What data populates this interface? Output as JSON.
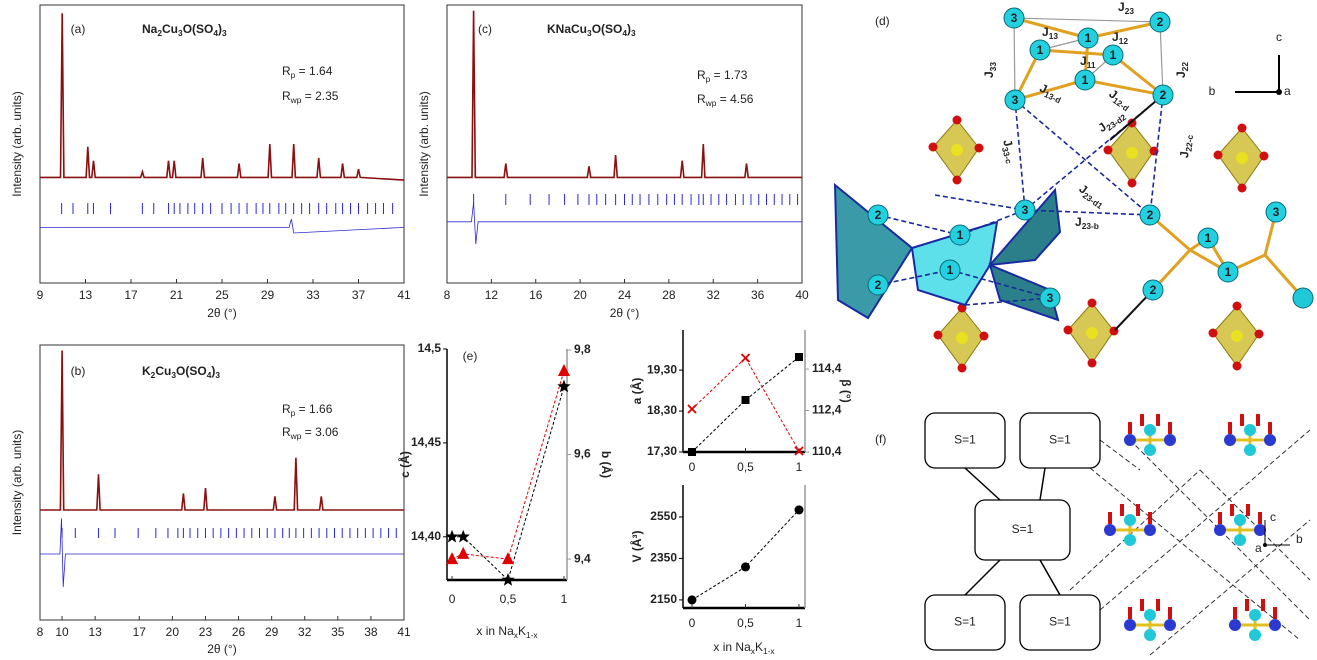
{
  "chart_data": [
    {
      "type": "line",
      "panel": "(a)",
      "title": [
        "Na",
        "2",
        "Cu",
        "3",
        "O(SO",
        "4",
        ")",
        "3"
      ],
      "annotations": [
        [
          "R",
          "p",
          " = 1.64"
        ],
        [
          "R",
          "wp",
          " = 2.35"
        ]
      ],
      "x_label": "2θ (°)",
      "y_label": "Intensity (arb. units)",
      "xlim": [
        9,
        41
      ],
      "xticks": [
        9,
        13,
        17,
        21,
        25,
        29,
        33,
        37,
        41
      ],
      "ylim": [
        0,
        100
      ],
      "series": [
        {
          "color": "#8b1010",
          "x": [
            9,
            10.8,
            10.95,
            11.1,
            13.05,
            13.2,
            13.35,
            13.55,
            13.7,
            13.85,
            17.85,
            18,
            18.15,
            20.15,
            20.3,
            20.45,
            20.65,
            20.8,
            20.95,
            23.15,
            23.3,
            23.45,
            26.35,
            26.5,
            26.65,
            29.05,
            29.2,
            29.35,
            31.15,
            31.3,
            31.45,
            33.35,
            33.5,
            33.65,
            35.45,
            35.6,
            35.75,
            36.85,
            37,
            37.15,
            41
          ],
          "values": [
            38,
            38,
            97,
            38,
            38,
            49,
            38,
            38,
            44,
            38,
            38,
            40,
            38,
            38,
            44,
            38,
            38,
            44,
            38,
            38,
            45,
            38,
            38,
            43,
            38,
            38,
            50,
            38,
            38,
            50,
            38,
            38,
            45,
            38,
            38,
            43,
            38,
            38,
            41,
            38,
            37
          ]
        },
        {
          "color": "#2a2ad0",
          "x": [
            9,
            30.9,
            31.1,
            31.3,
            41
          ],
          "values": [
            20,
            20,
            23,
            18,
            20
          ]
        }
      ],
      "markers": {
        "color": "#2a2ad0",
        "x": [
          10.9,
          11.9,
          13.2,
          13.7,
          15.2,
          18,
          19,
          20.3,
          20.8,
          21.3,
          22,
          22.6,
          23.3,
          24,
          25,
          25.8,
          26.5,
          27.2,
          28,
          28.6,
          29.2,
          30,
          30.6,
          31.3,
          32,
          32.7,
          33.5,
          34.2,
          35,
          35.6,
          36.3,
          37,
          37.8,
          38.5,
          39.2,
          40
        ]
      }
    },
    {
      "type": "line",
      "panel": "(c)",
      "title": [
        "KNaCu",
        "3",
        "O(SO",
        "4",
        ")",
        "3"
      ],
      "annotations": [
        [
          "R",
          "p",
          " = 1.73"
        ],
        [
          "R",
          "wp",
          " = 4.56"
        ]
      ],
      "x_label": "2θ (°)",
      "y_label": "Intensity (arb. units)",
      "xlim": [
        8,
        40
      ],
      "xticks": [
        8,
        12,
        16,
        20,
        24,
        28,
        32,
        36,
        40
      ],
      "ylim": [
        0,
        100
      ],
      "series": [
        {
          "color": "#8b1010",
          "x": [
            8,
            10.25,
            10.4,
            10.55,
            13.15,
            13.3,
            13.45,
            20.65,
            20.8,
            20.95,
            23.05,
            23.2,
            23.35,
            29.05,
            29.2,
            29.35,
            30.95,
            31.1,
            31.25,
            34.85,
            35,
            35.15,
            40
          ],
          "values": [
            38,
            38,
            98,
            38,
            38,
            43,
            38,
            38,
            42,
            38,
            38,
            46,
            38,
            38,
            44,
            38,
            38,
            50,
            38,
            38,
            43,
            38,
            38
          ]
        },
        {
          "color": "#2a2ad0",
          "x": [
            8,
            10.2,
            10.4,
            10.6,
            10.8,
            40
          ],
          "values": [
            22,
            22,
            29,
            14,
            22,
            22
          ]
        }
      ],
      "markers": {
        "color": "#2a2ad0",
        "x": [
          10.4,
          13.3,
          15.5,
          17.2,
          18.6,
          19.8,
          20.8,
          21.5,
          22.3,
          23.2,
          24,
          24.7,
          25.4,
          26.2,
          27,
          27.8,
          28.5,
          29.2,
          30,
          30.7,
          31.1,
          31.8,
          32.5,
          33.2,
          34,
          34.7,
          35.4,
          36.1,
          36.8,
          37.5,
          38.2,
          38.9,
          39.6
        ]
      }
    },
    {
      "type": "line",
      "panel": "(b)",
      "title": [
        "K",
        "2",
        "Cu",
        "3",
        "O(SO",
        "4",
        ")",
        "3"
      ],
      "annotations": [
        [
          "R",
          "p",
          " = 1.66"
        ],
        [
          "R",
          "wp",
          " = 3.06"
        ]
      ],
      "x_label": "2θ (°)",
      "y_label": "Intensity (arb. units)",
      "xlim": [
        8,
        41
      ],
      "xticks": [
        8,
        10,
        13,
        17,
        20,
        23,
        26,
        29,
        32,
        35,
        38,
        41
      ],
      "ylim": [
        0,
        100
      ],
      "series": [
        {
          "color": "#8b1010",
          "x": [
            8,
            9.85,
            10,
            10.15,
            13.15,
            13.3,
            13.45,
            20.85,
            21,
            21.15,
            22.85,
            23,
            23.15,
            29.15,
            29.3,
            29.45,
            31.05,
            31.2,
            31.35,
            33.35,
            33.5,
            33.65,
            41
          ],
          "values": [
            40,
            40,
            98,
            40,
            40,
            53,
            40,
            40,
            46,
            40,
            40,
            48,
            40,
            40,
            45,
            40,
            40,
            59,
            40,
            40,
            45,
            40,
            40
          ]
        },
        {
          "color": "#2a2ad0",
          "x": [
            8,
            9.8,
            9.95,
            10.1,
            10.3,
            41
          ],
          "values": [
            24,
            24,
            37,
            12,
            24,
            24
          ]
        }
      ],
      "markers": {
        "color": "#2a2ad0",
        "x": [
          10,
          11.2,
          13.3,
          14.8,
          16.9,
          18.5,
          19.6,
          20.5,
          21,
          21.6,
          22.3,
          23,
          23.7,
          24.4,
          25.1,
          25.8,
          26.5,
          27.2,
          27.9,
          28.6,
          29.3,
          30,
          30.6,
          31.2,
          31.9,
          32.6,
          33.3,
          34,
          34.7,
          35.4,
          36.1,
          36.8,
          37.5,
          38.2,
          38.9,
          39.6,
          40.3
        ]
      }
    },
    {
      "type": "line",
      "panel": "(e)",
      "x_label": [
        "x in Na",
        "x",
        "K",
        "1-x"
      ],
      "y_label": "c (Å)",
      "y2_label": "b (Å)",
      "y2_color": "#e00000",
      "xlim": [
        -0.045,
        1.027
      ],
      "xticks": [
        0,
        {
          "value": 0.5,
          "label": "0,5"
        },
        1
      ],
      "ylim": [
        14.377,
        14.5
      ],
      "yticks": [
        {
          "value": 14.4,
          "label": "14,40"
        },
        {
          "value": 14.45,
          "label": "14,45"
        },
        {
          "value": 14.5,
          "label": "14,5"
        }
      ],
      "y2lim": [
        9.36,
        9.802
      ],
      "y2ticks": [
        {
          "value": 9.4,
          "label": "9,4"
        },
        {
          "value": 9.6,
          "label": "9,6"
        },
        {
          "value": 9.8,
          "label": "9,8"
        }
      ],
      "series": [
        {
          "color": "#000000",
          "marker": "star",
          "x": [
            0,
            0.1,
            0.5,
            1
          ],
          "values": [
            14.4,
            14.4,
            14.377,
            14.48
          ]
        },
        {
          "color": "#e00000",
          "marker": "triangle",
          "axis": "y2",
          "x": [
            0,
            0.1,
            0.5,
            1
          ],
          "values": [
            9.4,
            9.41,
            9.4,
            9.76
          ]
        }
      ]
    },
    {
      "type": "line",
      "y_label": "a (Å)",
      "y2_label": "β (°)",
      "y2_color": "#e00000",
      "xlim": [
        -0.084,
        1.056
      ],
      "xticks": [
        0,
        {
          "value": 0.5,
          "label": "0,5"
        },
        1
      ],
      "ylim": [
        17.3,
        20.28
      ],
      "yticks": [
        {
          "value": 17.3,
          "label": "17,30"
        },
        {
          "value": 18.3,
          "label": "18,30"
        },
        {
          "value": 19.3,
          "label": "19,30"
        }
      ],
      "y2lim": [
        110.4,
        116.28
      ],
      "y2ticks": [
        {
          "value": 110.4,
          "label": "110,4"
        },
        {
          "value": 112.4,
          "label": "112,4"
        },
        {
          "value": 114.4,
          "label": "114,4"
        }
      ],
      "series": [
        {
          "color": "#000000",
          "marker": "square",
          "x": [
            0,
            0.5,
            1
          ],
          "values": [
            17.3,
            18.57,
            19.62
          ]
        },
        {
          "color": "#e00000",
          "marker": "x",
          "axis": "y2",
          "x": [
            0,
            0.5,
            1
          ],
          "values": [
            112.47,
            114.93,
            110.45
          ]
        }
      ]
    },
    {
      "type": "line",
      "x_label": [
        "x in Na",
        "x",
        "K",
        "1-x"
      ],
      "y_label": "V (Å³)",
      "xlim": [
        -0.084,
        1.056
      ],
      "xticks": [
        0,
        {
          "value": 0.5,
          "label": "0,5"
        },
        1
      ],
      "ylim": [
        2111,
        2704
      ],
      "yticks": [
        2150,
        2350,
        2550
      ],
      "series": [
        {
          "color": "#000000",
          "marker": "circle",
          "x": [
            0,
            0.5,
            1
          ],
          "values": [
            2150,
            2309,
            2584
          ]
        }
      ]
    }
  ],
  "structure_d": {
    "panel": "(d)",
    "atoms": [
      "3",
      "2",
      "1",
      "1",
      "1",
      "1",
      "3",
      "2",
      "3",
      "2",
      "1",
      "1",
      "2",
      "2",
      "3",
      "3",
      "1",
      "1",
      "2"
    ],
    "couplings": [
      [
        "J",
        "23"
      ],
      [
        "J",
        "13"
      ],
      [
        "J",
        "12"
      ],
      [
        "J",
        "11"
      ],
      [
        "J",
        "33"
      ],
      [
        "J",
        "13-d"
      ],
      [
        "J",
        "12-d"
      ],
      [
        "J",
        "22"
      ],
      [
        "J",
        "33-c"
      ],
      [
        "J",
        "23-d2"
      ],
      [
        "J",
        "22-c"
      ],
      [
        "J",
        "23-d1"
      ],
      [
        "J",
        "23-b"
      ]
    ],
    "axes": [
      "c",
      "b",
      "a"
    ]
  },
  "structure_f": {
    "panel": "(f)",
    "nodes": [
      "S=1",
      "S=1",
      "S=1",
      "S=1",
      "S=1"
    ],
    "axes": [
      "c",
      "a",
      "b"
    ]
  }
}
